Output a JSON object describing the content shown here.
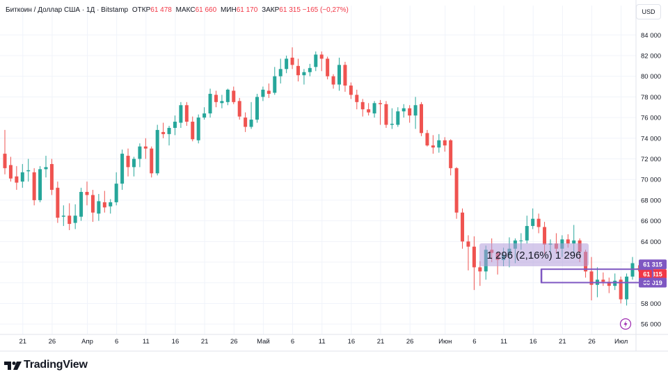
{
  "header": {
    "symbol": "Биткоин / Доллар США · 1Д · Bitstamp",
    "open_label": "ОТКР",
    "open_value": "61 478",
    "high_label": "МАКС",
    "high_value": "61 660",
    "low_label": "МИН",
    "low_value": "61 170",
    "close_label": "ЗАКР",
    "close_value": "61 315",
    "change": "−165 (−0,27%)"
  },
  "currency_button": "USD",
  "brand": "TradingView",
  "colors": {
    "up": "#26a69a",
    "down": "#ef5350",
    "measure": "#b39ddb",
    "price_label": "#7e57c2",
    "last_price": "#f23645",
    "down_text": "#f23645"
  },
  "chart_data": {
    "type": "candlestick",
    "symbol": "Биткоин / Доллар США",
    "interval": "1Д",
    "exchange": "Bitstamp",
    "currency": "USD",
    "ylim": [
      55000,
      85500
    ],
    "y_ticks": [
      56000,
      58000,
      60000,
      62000,
      64000,
      66000,
      68000,
      70000,
      72000,
      74000,
      76000,
      78000,
      80000,
      82000,
      84000
    ],
    "y_tick_labels": [
      "56 000",
      "58 000",
      "60 000",
      "62 000",
      "64 000",
      "66 000",
      "68 000",
      "70 000",
      "72 000",
      "74 000",
      "76 000",
      "78 000",
      "80 000",
      "82 000",
      "84 000"
    ],
    "x_tick_labels": [
      {
        "i": 3,
        "label": "21"
      },
      {
        "i": 8,
        "label": "26"
      },
      {
        "i": 14,
        "label": "Апр"
      },
      {
        "i": 19,
        "label": "6"
      },
      {
        "i": 24,
        "label": "11"
      },
      {
        "i": 29,
        "label": "16"
      },
      {
        "i": 34,
        "label": "21"
      },
      {
        "i": 39,
        "label": "26"
      },
      {
        "i": 44,
        "label": "Май"
      },
      {
        "i": 49,
        "label": "6"
      },
      {
        "i": 54,
        "label": "11"
      },
      {
        "i": 59,
        "label": "16"
      },
      {
        "i": 64,
        "label": "21"
      },
      {
        "i": 69,
        "label": "26"
      },
      {
        "i": 75,
        "label": "Июн"
      },
      {
        "i": 80,
        "label": "6"
      },
      {
        "i": 85,
        "label": "11"
      },
      {
        "i": 90,
        "label": "16"
      },
      {
        "i": 95,
        "label": "21"
      },
      {
        "i": 100,
        "label": "26"
      },
      {
        "i": 105,
        "label": "Июл"
      }
    ],
    "candles": [
      {
        "o": 72500,
        "h": 74800,
        "l": 70500,
        "c": 71100
      },
      {
        "o": 71400,
        "h": 72200,
        "l": 69800,
        "c": 70100
      },
      {
        "o": 70300,
        "h": 71300,
        "l": 69000,
        "c": 69700
      },
      {
        "o": 69800,
        "h": 71500,
        "l": 69200,
        "c": 70700
      },
      {
        "o": 70800,
        "h": 72000,
        "l": 69800,
        "c": 70900
      },
      {
        "o": 70700,
        "h": 71100,
        "l": 67500,
        "c": 68000
      },
      {
        "o": 68000,
        "h": 71300,
        "l": 67800,
        "c": 71000
      },
      {
        "o": 71000,
        "h": 72300,
        "l": 70200,
        "c": 71200
      },
      {
        "o": 71500,
        "h": 72000,
        "l": 68500,
        "c": 69000
      },
      {
        "o": 69200,
        "h": 69800,
        "l": 65800,
        "c": 66300
      },
      {
        "o": 66400,
        "h": 67500,
        "l": 65500,
        "c": 66500
      },
      {
        "o": 66500,
        "h": 67700,
        "l": 65100,
        "c": 65700
      },
      {
        "o": 65800,
        "h": 67600,
        "l": 65200,
        "c": 66500
      },
      {
        "o": 66400,
        "h": 69200,
        "l": 66000,
        "c": 68800
      },
      {
        "o": 68800,
        "h": 69800,
        "l": 67500,
        "c": 68500
      },
      {
        "o": 68500,
        "h": 69000,
        "l": 65900,
        "c": 66800
      },
      {
        "o": 66700,
        "h": 68600,
        "l": 66000,
        "c": 67900
      },
      {
        "o": 67800,
        "h": 68900,
        "l": 66800,
        "c": 67300
      },
      {
        "o": 67400,
        "h": 68100,
        "l": 66700,
        "c": 67800
      },
      {
        "o": 67800,
        "h": 70700,
        "l": 67500,
        "c": 69600
      },
      {
        "o": 69600,
        "h": 72900,
        "l": 69000,
        "c": 72500
      },
      {
        "o": 72300,
        "h": 73000,
        "l": 70300,
        "c": 71200
      },
      {
        "o": 71200,
        "h": 72200,
        "l": 70300,
        "c": 72000
      },
      {
        "o": 72000,
        "h": 73500,
        "l": 71200,
        "c": 73200
      },
      {
        "o": 73200,
        "h": 74000,
        "l": 72000,
        "c": 73000
      },
      {
        "o": 73000,
        "h": 73200,
        "l": 70200,
        "c": 70600
      },
      {
        "o": 70600,
        "h": 75300,
        "l": 70400,
        "c": 74800
      },
      {
        "o": 74600,
        "h": 75500,
        "l": 74000,
        "c": 74400
      },
      {
        "o": 74400,
        "h": 75200,
        "l": 73300,
        "c": 75000
      },
      {
        "o": 75000,
        "h": 76200,
        "l": 74300,
        "c": 75600
      },
      {
        "o": 75500,
        "h": 77500,
        "l": 75000,
        "c": 77200
      },
      {
        "o": 77200,
        "h": 77500,
        "l": 75200,
        "c": 75600
      },
      {
        "o": 75600,
        "h": 76100,
        "l": 73700,
        "c": 73900
      },
      {
        "o": 73800,
        "h": 76300,
        "l": 73500,
        "c": 76000
      },
      {
        "o": 76000,
        "h": 77000,
        "l": 75800,
        "c": 76400
      },
      {
        "o": 76400,
        "h": 78800,
        "l": 76000,
        "c": 78300
      },
      {
        "o": 78200,
        "h": 78600,
        "l": 77000,
        "c": 77500
      },
      {
        "o": 77400,
        "h": 78200,
        "l": 76900,
        "c": 77600
      },
      {
        "o": 77500,
        "h": 78800,
        "l": 77200,
        "c": 78700
      },
      {
        "o": 78600,
        "h": 79000,
        "l": 77300,
        "c": 77500
      },
      {
        "o": 77600,
        "h": 77900,
        "l": 75800,
        "c": 76100
      },
      {
        "o": 76000,
        "h": 76500,
        "l": 74600,
        "c": 75100
      },
      {
        "o": 75100,
        "h": 77500,
        "l": 74900,
        "c": 75800
      },
      {
        "o": 75800,
        "h": 78300,
        "l": 75500,
        "c": 78000
      },
      {
        "o": 78000,
        "h": 79000,
        "l": 77600,
        "c": 78700
      },
      {
        "o": 78600,
        "h": 79300,
        "l": 77900,
        "c": 78300
      },
      {
        "o": 78400,
        "h": 80900,
        "l": 78200,
        "c": 80000
      },
      {
        "o": 80000,
        "h": 81700,
        "l": 79300,
        "c": 80700
      },
      {
        "o": 80700,
        "h": 82000,
        "l": 80300,
        "c": 81700
      },
      {
        "o": 81800,
        "h": 82800,
        "l": 80700,
        "c": 81100
      },
      {
        "o": 81000,
        "h": 81700,
        "l": 79500,
        "c": 80100
      },
      {
        "o": 80100,
        "h": 80700,
        "l": 79200,
        "c": 80400
      },
      {
        "o": 80400,
        "h": 81200,
        "l": 80000,
        "c": 80800
      },
      {
        "o": 80900,
        "h": 82400,
        "l": 80500,
        "c": 82100
      },
      {
        "o": 82100,
        "h": 82400,
        "l": 80500,
        "c": 81700
      },
      {
        "o": 81700,
        "h": 81900,
        "l": 79700,
        "c": 80000
      },
      {
        "o": 80000,
        "h": 80200,
        "l": 78800,
        "c": 79200
      },
      {
        "o": 79200,
        "h": 81800,
        "l": 78600,
        "c": 81100
      },
      {
        "o": 81100,
        "h": 81400,
        "l": 78500,
        "c": 79100
      },
      {
        "o": 79100,
        "h": 79400,
        "l": 77800,
        "c": 78200
      },
      {
        "o": 78200,
        "h": 78700,
        "l": 76800,
        "c": 77500
      },
      {
        "o": 77500,
        "h": 77800,
        "l": 76100,
        "c": 76800
      },
      {
        "o": 76800,
        "h": 77400,
        "l": 76200,
        "c": 76500
      },
      {
        "o": 76400,
        "h": 77600,
        "l": 76000,
        "c": 77400
      },
      {
        "o": 77400,
        "h": 77700,
        "l": 75300,
        "c": 77300
      },
      {
        "o": 77300,
        "h": 77600,
        "l": 75000,
        "c": 75300
      },
      {
        "o": 75300,
        "h": 76900,
        "l": 74900,
        "c": 75400
      },
      {
        "o": 75300,
        "h": 77000,
        "l": 75100,
        "c": 76600
      },
      {
        "o": 76600,
        "h": 77300,
        "l": 76000,
        "c": 76900
      },
      {
        "o": 76900,
        "h": 77200,
        "l": 75500,
        "c": 76200
      },
      {
        "o": 76200,
        "h": 78000,
        "l": 74900,
        "c": 77200
      },
      {
        "o": 77300,
        "h": 77500,
        "l": 74200,
        "c": 74500
      },
      {
        "o": 74500,
        "h": 74800,
        "l": 73200,
        "c": 73300
      },
      {
        "o": 73300,
        "h": 74300,
        "l": 72500,
        "c": 73100
      },
      {
        "o": 73100,
        "h": 74400,
        "l": 72600,
        "c": 73800
      },
      {
        "o": 73800,
        "h": 74100,
        "l": 72700,
        "c": 73300
      },
      {
        "o": 73800,
        "h": 73900,
        "l": 70400,
        "c": 71100
      },
      {
        "o": 71100,
        "h": 71200,
        "l": 66200,
        "c": 66800
      },
      {
        "o": 66800,
        "h": 67200,
        "l": 63300,
        "c": 64000
      },
      {
        "o": 64000,
        "h": 64600,
        "l": 61200,
        "c": 63500
      },
      {
        "o": 63500,
        "h": 64500,
        "l": 59300,
        "c": 61500
      },
      {
        "o": 61500,
        "h": 62100,
        "l": 59700,
        "c": 61100
      },
      {
        "o": 61100,
        "h": 63600,
        "l": 60300,
        "c": 63200
      },
      {
        "o": 63200,
        "h": 64300,
        "l": 62000,
        "c": 62900
      },
      {
        "o": 62900,
        "h": 63000,
        "l": 60800,
        "c": 62200
      },
      {
        "o": 62200,
        "h": 63400,
        "l": 61600,
        "c": 62700
      },
      {
        "o": 62700,
        "h": 64400,
        "l": 61500,
        "c": 63300
      },
      {
        "o": 63300,
        "h": 64300,
        "l": 61900,
        "c": 64100
      },
      {
        "o": 64100,
        "h": 64800,
        "l": 63200,
        "c": 64100
      },
      {
        "o": 64100,
        "h": 66500,
        "l": 63800,
        "c": 65500
      },
      {
        "o": 65500,
        "h": 67200,
        "l": 65200,
        "c": 66200
      },
      {
        "o": 66200,
        "h": 66700,
        "l": 64800,
        "c": 65400
      },
      {
        "o": 65400,
        "h": 65900,
        "l": 62800,
        "c": 63700
      },
      {
        "o": 63700,
        "h": 64200,
        "l": 62700,
        "c": 63800
      },
      {
        "o": 63800,
        "h": 64800,
        "l": 62900,
        "c": 63300
      },
      {
        "o": 63300,
        "h": 64600,
        "l": 62500,
        "c": 64200
      },
      {
        "o": 64200,
        "h": 64700,
        "l": 63400,
        "c": 63800
      },
      {
        "o": 63800,
        "h": 65600,
        "l": 62800,
        "c": 64100
      },
      {
        "o": 64100,
        "h": 64300,
        "l": 62000,
        "c": 63000
      },
      {
        "o": 63000,
        "h": 63200,
        "l": 60500,
        "c": 61100
      },
      {
        "o": 61100,
        "h": 62500,
        "l": 58300,
        "c": 59800
      },
      {
        "o": 59800,
        "h": 61500,
        "l": 58600,
        "c": 60300
      },
      {
        "o": 60300,
        "h": 61000,
        "l": 59700,
        "c": 60100
      },
      {
        "o": 60100,
        "h": 60500,
        "l": 59000,
        "c": 59700
      },
      {
        "o": 59700,
        "h": 60900,
        "l": 59300,
        "c": 60200
      },
      {
        "o": 60300,
        "h": 60600,
        "l": 58000,
        "c": 58400
      },
      {
        "o": 58400,
        "h": 60900,
        "l": 57800,
        "c": 60600
      },
      {
        "o": 60600,
        "h": 62500,
        "l": 60300,
        "c": 61900
      },
      {
        "o": 61400,
        "h": 61700,
        "l": 61100,
        "c": 61300
      }
    ],
    "last_price": 61315,
    "price_labels": [
      {
        "value": 61315,
        "text": "61 315",
        "style": "purple"
      },
      {
        "value": 61315,
        "text": "61 315",
        "style": "red"
      },
      {
        "value": 60019,
        "text": "60 019",
        "style": "purple"
      }
    ],
    "measure_label": "1 296 (2,16%) 1 296",
    "price_range_box": {
      "top": 61315,
      "bottom": 60019,
      "start_index": 92,
      "end_index": 110
    }
  }
}
